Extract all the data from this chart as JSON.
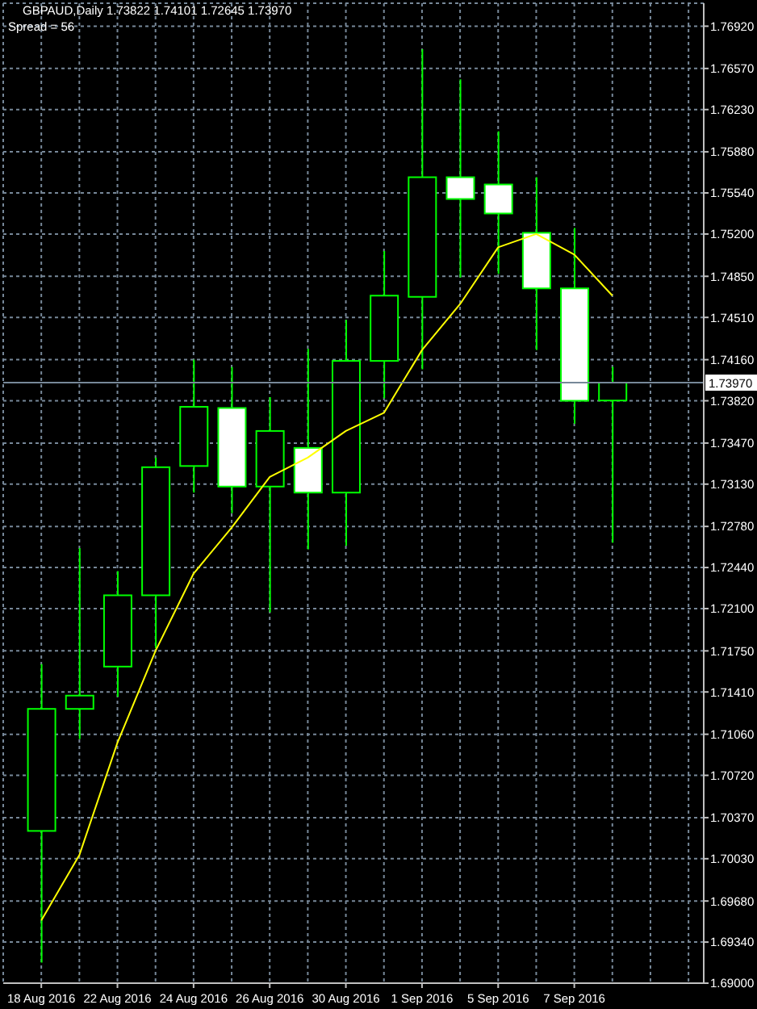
{
  "chart_data": {
    "type": "candlestick",
    "title": "GBPAUD,Daily 1.73822 1.74101 1.72645 1.73970",
    "subtitle": "Spread = 56",
    "categories": [
      "18 Aug 2016",
      null,
      "22 Aug 2016",
      null,
      "24 Aug 2016",
      null,
      "26 Aug 2016",
      null,
      "30 Aug 2016",
      null,
      "1 Sep 2016",
      null,
      "5 Sep 2016",
      null,
      "7 Sep 2016",
      null
    ],
    "ohlc": [
      [
        1.7026,
        1.7164,
        1.6917,
        1.7127
      ],
      [
        1.7127,
        1.726,
        1.7102,
        1.7138
      ],
      [
        1.7162,
        1.7241,
        1.7137,
        1.7221
      ],
      [
        1.7221,
        1.7335,
        1.7177,
        1.7327
      ],
      [
        1.7328,
        1.7416,
        1.7306,
        1.7377
      ],
      [
        1.7376,
        1.741,
        1.7289,
        1.7311
      ],
      [
        1.7311,
        1.7385,
        1.7207,
        1.7357
      ],
      [
        1.7343,
        1.7425,
        1.7259,
        1.7306
      ],
      [
        1.7306,
        1.7449,
        1.7262,
        1.7415
      ],
      [
        1.7415,
        1.7506,
        1.7384,
        1.7469
      ],
      [
        1.7468,
        1.7673,
        1.7408,
        1.7567
      ],
      [
        1.7567,
        1.7648,
        1.7484,
        1.7549
      ],
      [
        1.7561,
        1.7605,
        1.7487,
        1.7537
      ],
      [
        1.7521,
        1.7567,
        1.7424,
        1.7475
      ],
      [
        1.7475,
        1.7525,
        1.7363,
        1.7382
      ],
      [
        1.73822,
        1.74101,
        1.72645,
        1.7397
      ]
    ],
    "color": "#00ff00",
    "colors": [
      "#000000",
      "#000000",
      "#000000",
      "#000000",
      "#000000",
      "#ffffff",
      "#000000",
      "#ffffff",
      "#000000",
      "#000000",
      "#000000",
      "#ffffff",
      "#ffffff",
      "#ffffff",
      "#ffffff",
      "#000000"
    ],
    "series": [
      {
        "type": "line",
        "color": "#ffff00",
        "values": [
          1.6952,
          1.7006,
          1.7099,
          1.7175,
          1.7239,
          1.7277,
          1.7319,
          1.7335,
          1.7357,
          1.7372,
          1.7424,
          1.7462,
          1.7509,
          1.752,
          1.7503,
          1.7469
        ]
      }
    ],
    "ylim": [
      1.69,
      1.7711
    ],
    "yticks": [
      {
        "value": 1.69,
        "label": "1.69000"
      },
      {
        "value": 1.6934,
        "label": "1.69340"
      },
      {
        "value": 1.6968,
        "label": "1.69680"
      },
      {
        "value": 1.7003,
        "label": "1.70030"
      },
      {
        "value": 1.7037,
        "label": "1.70370"
      },
      {
        "value": 1.7072,
        "label": "1.70720"
      },
      {
        "value": 1.7106,
        "label": "1.71060"
      },
      {
        "value": 1.7141,
        "label": "1.71410"
      },
      {
        "value": 1.7175,
        "label": "1.71750"
      },
      {
        "value": 1.721,
        "label": "1.72100"
      },
      {
        "value": 1.7244,
        "label": "1.72440"
      },
      {
        "value": 1.7278,
        "label": "1.72780"
      },
      {
        "value": 1.7313,
        "label": "1.73130"
      },
      {
        "value": 1.7347,
        "label": "1.73470"
      },
      {
        "value": 1.7382,
        "label": "1.73820"
      },
      {
        "value": 1.7416,
        "label": "1.74160"
      },
      {
        "value": 1.7451,
        "label": "1.74510"
      },
      {
        "value": 1.7485,
        "label": "1.74850"
      },
      {
        "value": 1.752,
        "label": "1.75200"
      },
      {
        "value": 1.7554,
        "label": "1.75540"
      },
      {
        "value": 1.7588,
        "label": "1.75880"
      },
      {
        "value": 1.7623,
        "label": "1.76230"
      },
      {
        "value": 1.7657,
        "label": "1.76570"
      },
      {
        "value": 1.7692,
        "label": "1.76920"
      }
    ],
    "ref_lines": [
      {
        "axis": "y",
        "value": 1.7397,
        "label": "1.73970",
        "color": "#778899"
      }
    ],
    "grid": true
  }
}
